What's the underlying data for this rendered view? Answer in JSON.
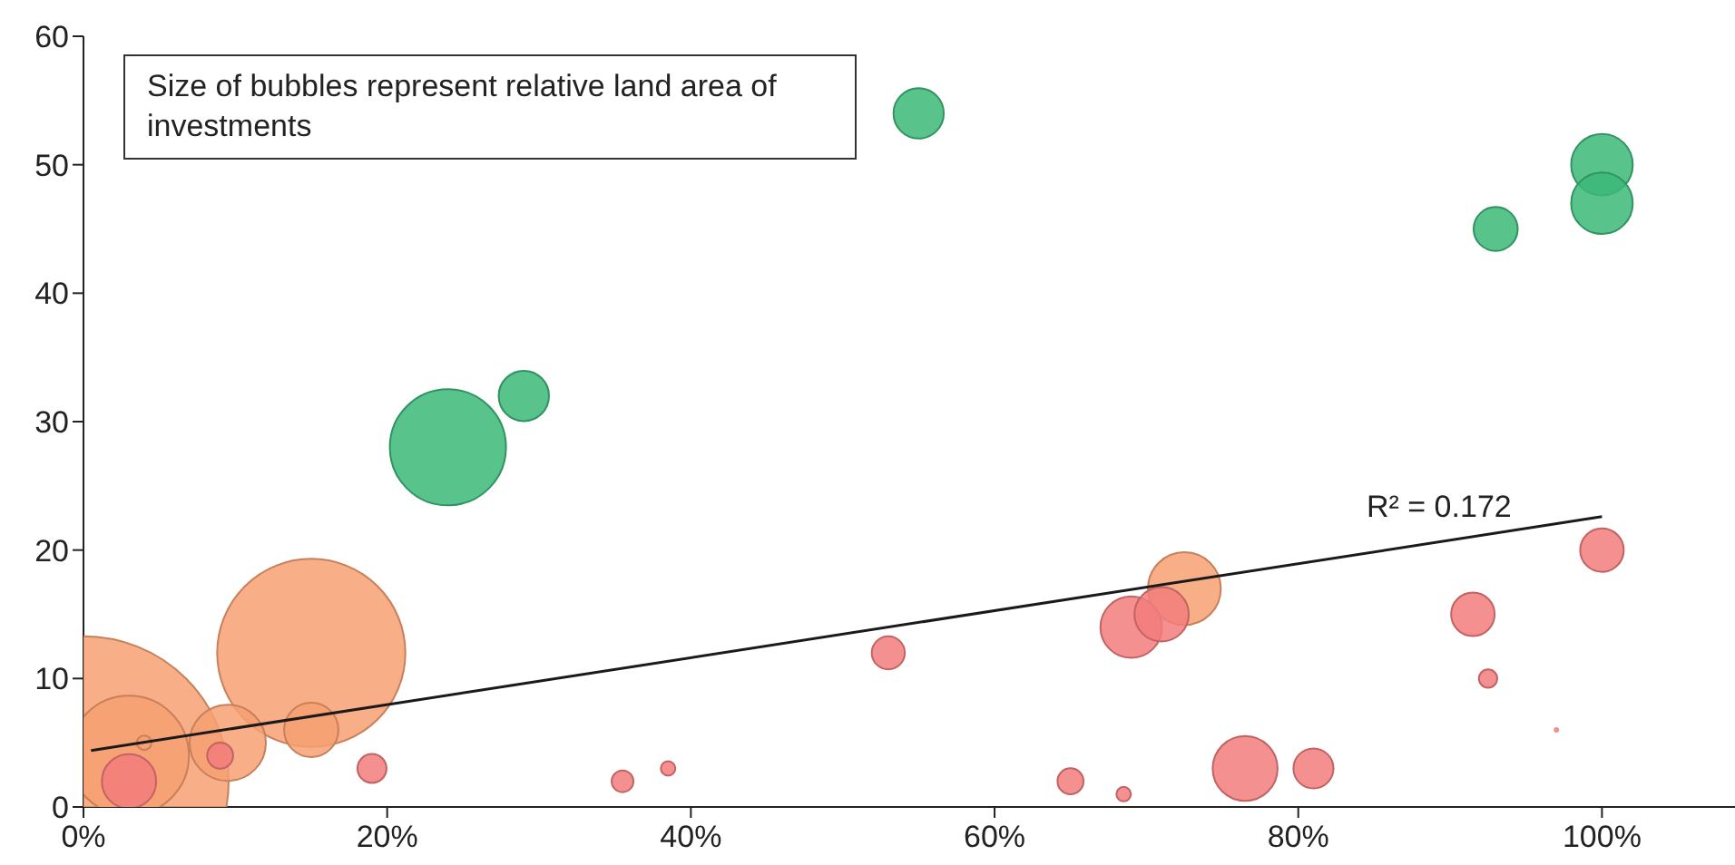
{
  "chart_data": {
    "type": "bubble",
    "xlim": [
      0,
      109
    ],
    "xticks": [
      {
        "value": 0,
        "label": "0%"
      },
      {
        "value": 20,
        "label": "20%"
      },
      {
        "value": 40,
        "label": "40%"
      },
      {
        "value": 60,
        "label": "60%"
      },
      {
        "value": 80,
        "label": "80%"
      },
      {
        "value": 100,
        "label": "100%"
      }
    ],
    "ylim": [
      0,
      60
    ],
    "yticks": [
      0,
      10,
      20,
      30,
      40,
      50,
      60
    ],
    "grid": false,
    "legend": false,
    "annotations": [
      "Size of bubbles represent relative land area of investments",
      "R² = 0.172"
    ],
    "series": [
      {
        "color": "#3cb878",
        "x": [
          55,
          100,
          100,
          93,
          29,
          24
        ],
        "values": [
          54,
          50,
          47,
          45,
          32,
          28
        ],
        "sizes": [
          0.03,
          0.045,
          0.045,
          0.023,
          0.03,
          0.16
        ]
      },
      {
        "color": "#f7a072",
        "x": [
          0,
          3,
          4,
          9.5,
          15,
          15,
          72.5
        ],
        "values": [
          2,
          4,
          5,
          5,
          12,
          6,
          17
        ],
        "sizes": [
          1,
          0.17,
          0.0025,
          0.069,
          0.42,
          0.035,
          0.063
        ]
      },
      {
        "color": "#f27c7c",
        "x": [
          3,
          9,
          19,
          35.5,
          38.5,
          53,
          65,
          68.5,
          69,
          71,
          76.5,
          81,
          91.5,
          92.5,
          97,
          100
        ],
        "values": [
          2,
          4,
          3,
          2,
          3,
          12,
          2,
          1,
          14,
          15,
          3,
          3,
          15,
          10,
          6,
          20
        ],
        "sizes": [
          0.035,
          0.008,
          0.01,
          0.0056,
          0.0025,
          0.013,
          0.008,
          0.0025,
          0.045,
          0.035,
          0.05,
          0.019,
          0.0225,
          0.004,
          0.0002,
          0.0225
        ]
      },
      {
        "type": "line",
        "color": "#1a1a1a",
        "x": [
          0.5,
          100
        ],
        "values": [
          4.4,
          22.6
        ]
      }
    ]
  }
}
